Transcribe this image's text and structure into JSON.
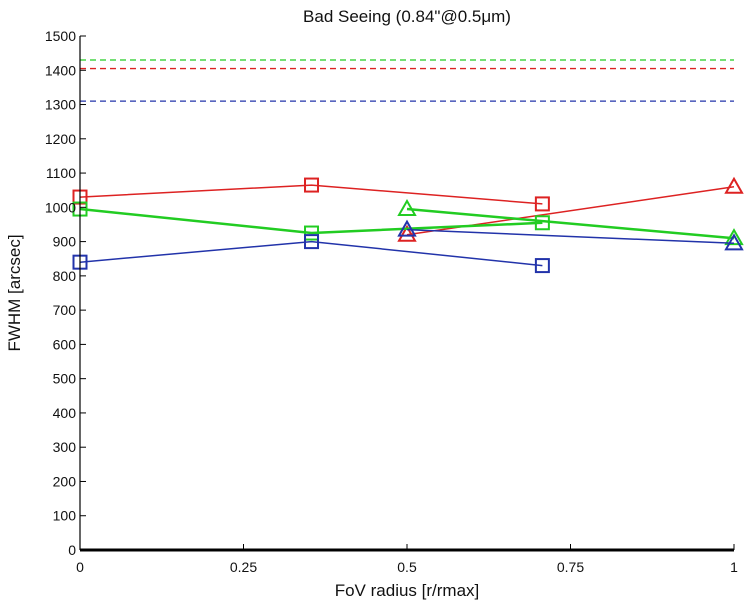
{
  "chart_data": {
    "type": "line",
    "title": "Bad Seeing (0.84\"@0.5μm)",
    "xlabel": "FoV radius [r/rmax]",
    "ylabel": "FWHM [arcsec]",
    "xlim": [
      0,
      1
    ],
    "ylim": [
      0,
      1500
    ],
    "xticks": [
      0,
      0.25,
      0.5,
      0.75,
      1
    ],
    "xtick_labels": [
      "0",
      "0.25",
      "0.5",
      "0.75",
      "1"
    ],
    "yticks": [
      0,
      100,
      200,
      300,
      400,
      500,
      600,
      700,
      800,
      900,
      1000,
      1100,
      1200,
      1300,
      1400,
      1500
    ],
    "ytick_labels": [
      "0",
      "100",
      "200",
      "300",
      "400",
      "500",
      "600",
      "700",
      "800",
      "900",
      "1000",
      "1100",
      "1200",
      "1300",
      "1400",
      "1500"
    ],
    "grid": false,
    "reference_lines": [
      {
        "color": "#22cc22",
        "y": 1430,
        "style": "dashed"
      },
      {
        "color": "#dd2222",
        "y": 1405,
        "style": "dashed"
      },
      {
        "color": "#2233aa",
        "y": 1310,
        "style": "dashed"
      }
    ],
    "series": [
      {
        "color": "#dd2222",
        "marker": "square",
        "line_width": 1.5,
        "x": [
          0,
          0.354,
          0.707
        ],
        "y": [
          1030,
          1065,
          1010
        ]
      },
      {
        "color": "#dd2222",
        "marker": "triangle",
        "line_width": 1.5,
        "x": [
          0.5,
          1
        ],
        "y": [
          920,
          1060
        ]
      },
      {
        "color": "#22cc22",
        "marker": "square",
        "line_width": 2.5,
        "x": [
          0,
          0.354,
          0.707
        ],
        "y": [
          995,
          925,
          955
        ]
      },
      {
        "color": "#22cc22",
        "marker": "triangle",
        "line_width": 2.5,
        "x": [
          0.5,
          1
        ],
        "y": [
          995,
          910
        ]
      },
      {
        "color": "#2233aa",
        "marker": "square",
        "line_width": 1.5,
        "x": [
          0,
          0.354,
          0.707
        ],
        "y": [
          840,
          900,
          830
        ]
      },
      {
        "color": "#2233aa",
        "marker": "triangle",
        "line_width": 1.5,
        "x": [
          0.5,
          1
        ],
        "y": [
          935,
          895
        ]
      }
    ]
  }
}
